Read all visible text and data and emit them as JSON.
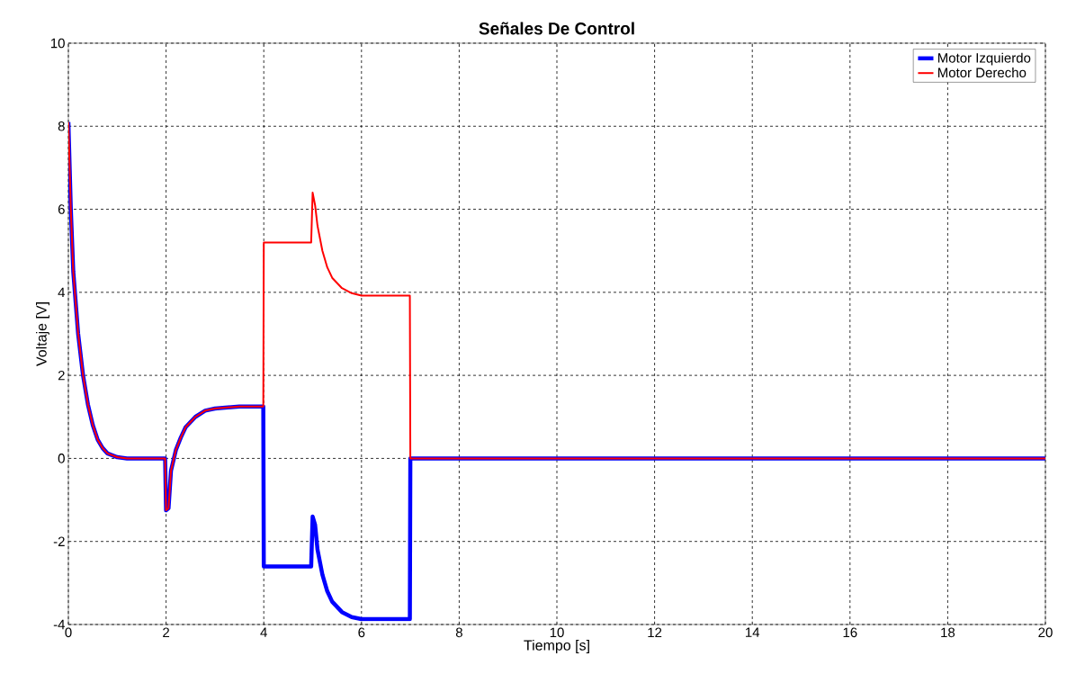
{
  "chart_data": {
    "type": "line",
    "title": "Señales De Control",
    "xlabel": "Tiempo [s]",
    "ylabel": "Voltaje [V]",
    "xlim": [
      0,
      20
    ],
    "ylim": [
      -4,
      10
    ],
    "xticks": [
      0,
      2,
      4,
      6,
      8,
      10,
      12,
      14,
      16,
      18,
      20
    ],
    "yticks": [
      -4,
      -2,
      0,
      2,
      4,
      6,
      8,
      10
    ],
    "grid": true,
    "legend": "top right",
    "line_style": "solid",
    "marker": "none",
    "series": [
      {
        "name": "Motor Izquierdo",
        "color": "#0000ff",
        "x": [
          0,
          0.05,
          0.1,
          0.2,
          0.3,
          0.4,
          0.5,
          0.6,
          0.7,
          0.8,
          1.0,
          1.2,
          1.98,
          2.0,
          2.05,
          2.1,
          2.2,
          2.3,
          2.4,
          2.6,
          2.8,
          3.0,
          3.5,
          3.99,
          4.0,
          4.97,
          5.0,
          5.05,
          5.1,
          5.2,
          5.3,
          5.4,
          5.6,
          5.8,
          6.0,
          6.99,
          7.0,
          20
        ],
        "values": [
          8.1,
          6,
          4.5,
          3,
          2,
          1.3,
          0.8,
          0.45,
          0.25,
          0.12,
          0.03,
          0,
          0,
          -1.25,
          -1.2,
          -0.3,
          0.2,
          0.5,
          0.75,
          1.0,
          1.15,
          1.2,
          1.25,
          1.25,
          -2.6,
          -2.6,
          -1.4,
          -1.6,
          -2.2,
          -2.8,
          -3.2,
          -3.45,
          -3.7,
          -3.82,
          -3.87,
          -3.87,
          0,
          0
        ]
      },
      {
        "name": "Motor Derecho",
        "color": "#ff0000",
        "x": [
          0,
          0.05,
          0.1,
          0.2,
          0.3,
          0.4,
          0.5,
          0.6,
          0.7,
          0.8,
          1.0,
          1.2,
          1.98,
          2.0,
          2.05,
          2.1,
          2.2,
          2.3,
          2.4,
          2.6,
          2.8,
          3.0,
          3.5,
          3.99,
          4.0,
          4.97,
          5.0,
          5.05,
          5.1,
          5.2,
          5.3,
          5.4,
          5.6,
          5.8,
          6.0,
          6.99,
          7.0,
          20
        ],
        "values": [
          8.1,
          6,
          4.5,
          3,
          2,
          1.3,
          0.8,
          0.45,
          0.25,
          0.12,
          0.03,
          0,
          0,
          -1.25,
          -1.2,
          -0.3,
          0.2,
          0.5,
          0.75,
          1.0,
          1.15,
          1.2,
          1.25,
          1.25,
          5.2,
          5.2,
          6.4,
          6.1,
          5.6,
          5.0,
          4.6,
          4.35,
          4.1,
          3.98,
          3.92,
          3.92,
          0,
          0
        ]
      }
    ]
  }
}
